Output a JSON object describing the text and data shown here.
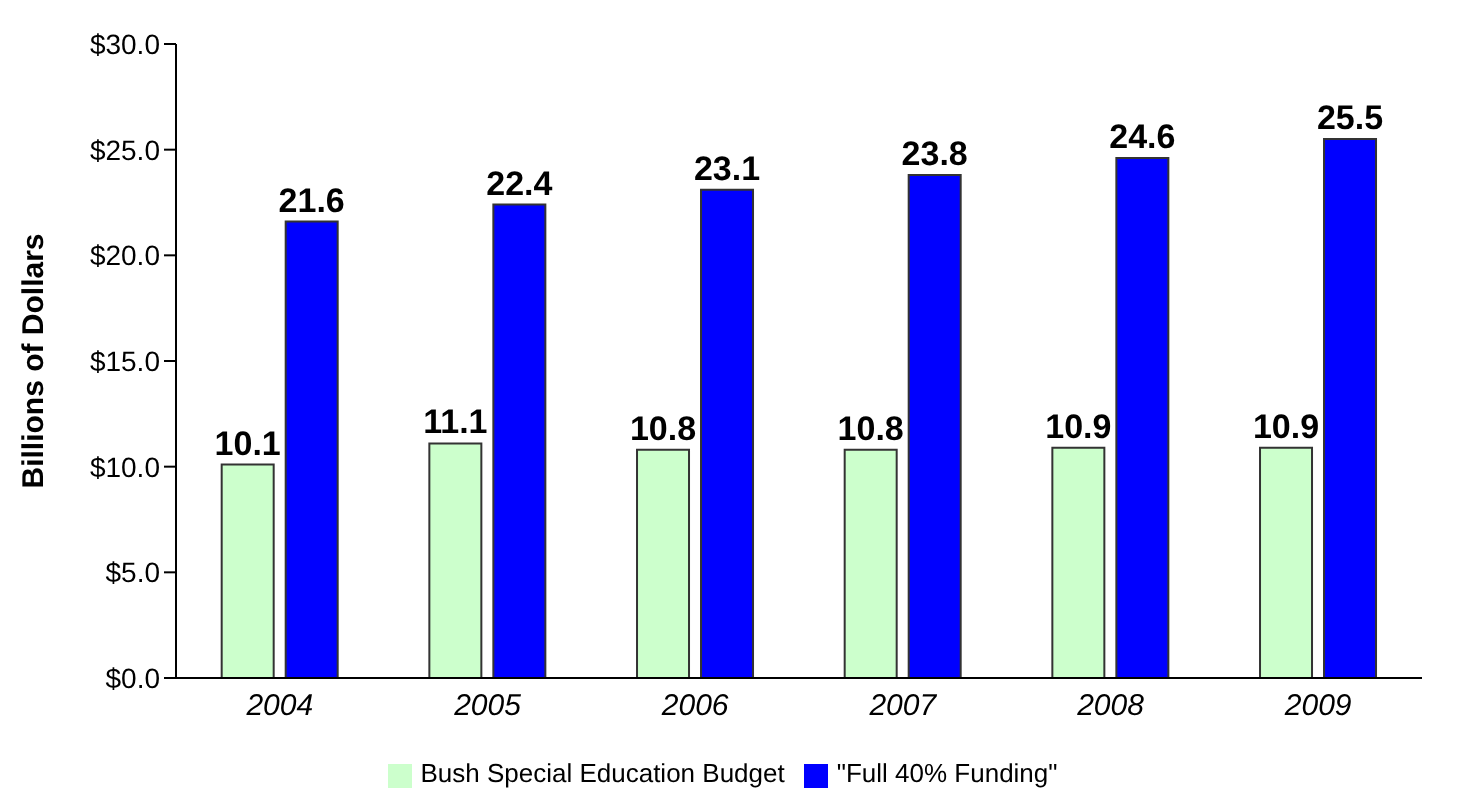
{
  "chart_data": {
    "type": "bar",
    "ylabel": "Billions of Dollars",
    "categories": [
      "2004",
      "2005",
      "2006",
      "2007",
      "2008",
      "2009"
    ],
    "series": [
      {
        "name": "Bush Special Education Budget",
        "color": "#ccffcc",
        "values": [
          10.1,
          11.1,
          10.8,
          10.8,
          10.9,
          10.9
        ]
      },
      {
        "name": "\"Full 40% Funding\"",
        "color": "#0000ff",
        "values": [
          21.6,
          22.4,
          23.1,
          23.8,
          24.6,
          25.5
        ]
      }
    ],
    "ylim": [
      0,
      30
    ],
    "yticks": [
      {
        "value": 0,
        "label": "$0.0"
      },
      {
        "value": 5,
        "label": "$5.0"
      },
      {
        "value": 10,
        "label": "$10.0"
      },
      {
        "value": 15,
        "label": "$15.0"
      },
      {
        "value": 20,
        "label": "$20.0"
      },
      {
        "value": 25,
        "label": "$25.0"
      },
      {
        "value": 30,
        "label": "$30.0"
      }
    ],
    "data_labels": true,
    "legend": "bottom",
    "grid": false
  }
}
